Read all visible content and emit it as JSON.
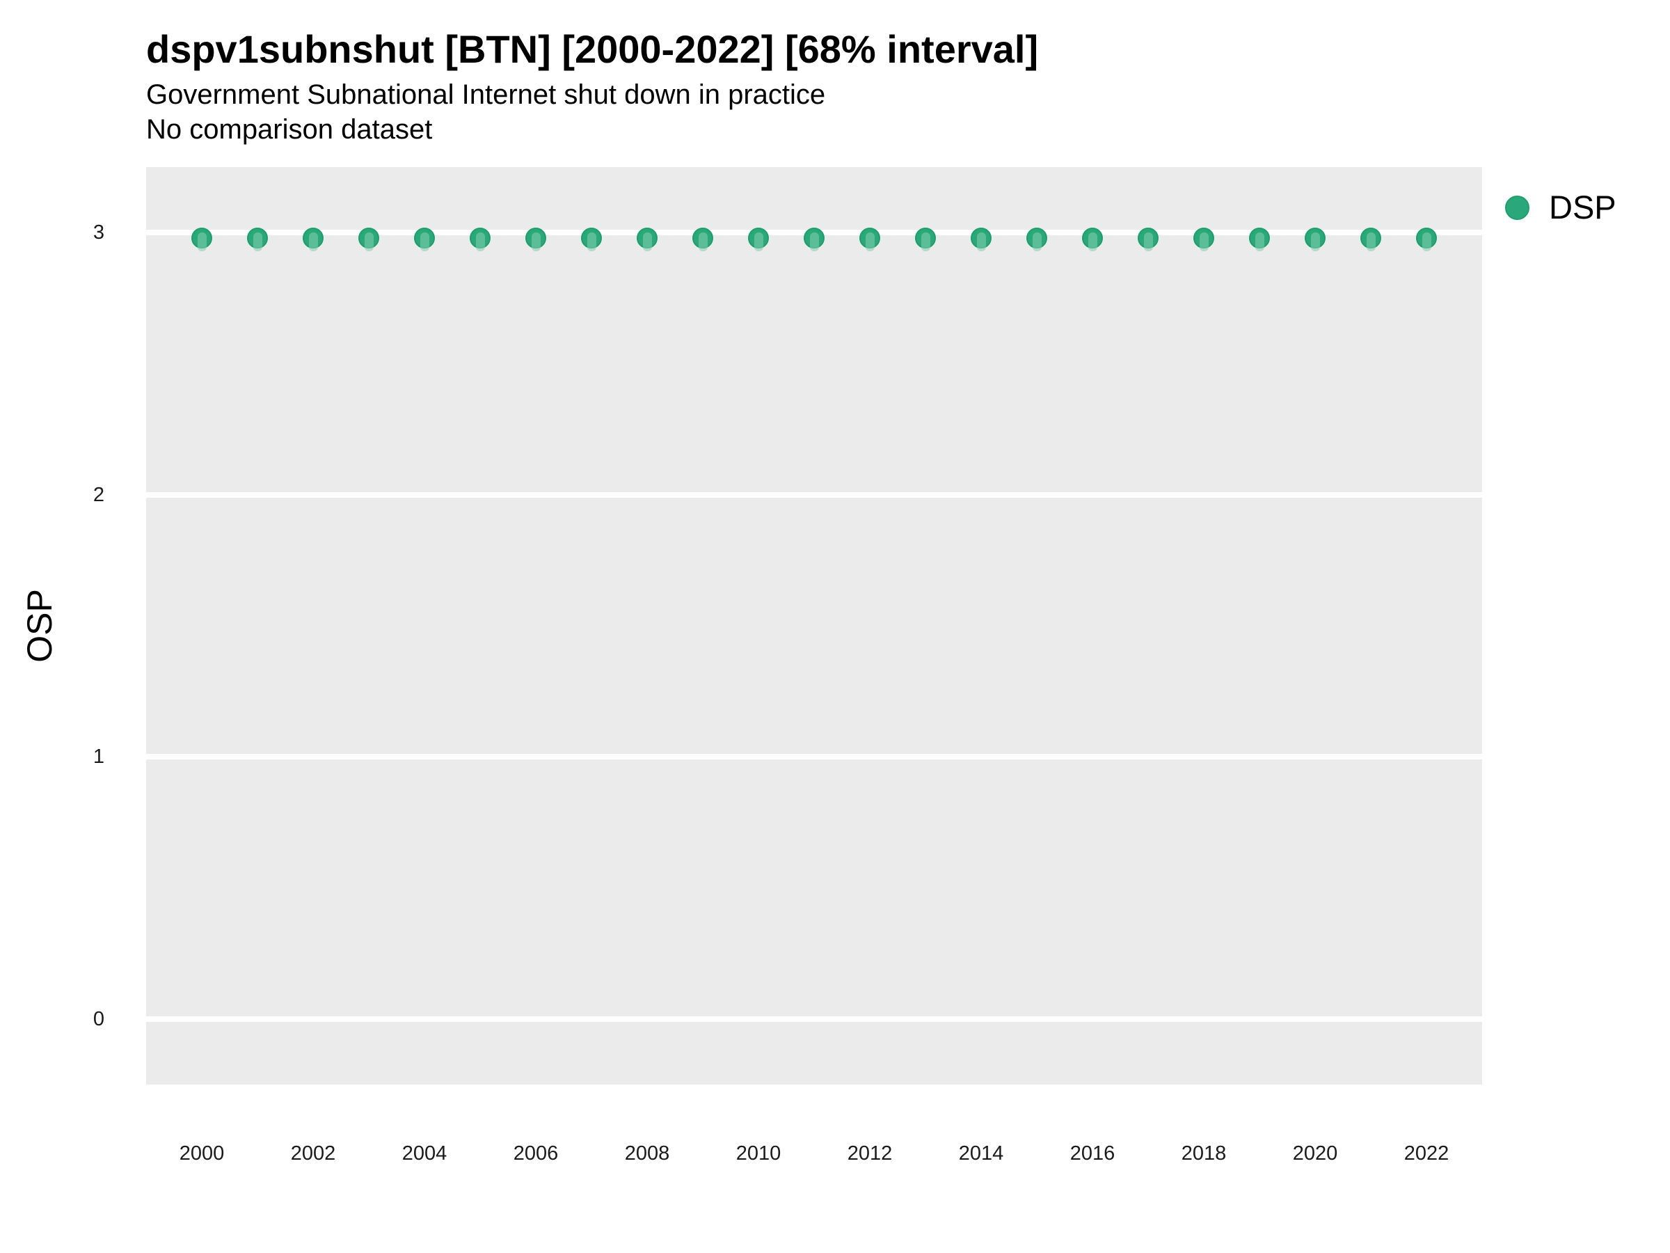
{
  "header": {
    "title": "dspv1subnshut [BTN] [2000-2022] [68% interval]",
    "subtitle_line1": "Government Subnational Internet shut down in practice",
    "subtitle_line2": "No comparison dataset"
  },
  "legend": {
    "position": "right",
    "items": [
      {
        "label": "DSP",
        "color": "#2AA87C",
        "border_color": "#1F9E6D"
      }
    ]
  },
  "chart_data": {
    "type": "scatter",
    "title": "dspv1subnshut [BTN] [2000-2022] [68% interval]",
    "subtitle": "Government Subnational Internet shut down in practice",
    "note": "No comparison dataset",
    "xlabel": "",
    "ylabel": "OSP",
    "xlim": [
      1999,
      2023
    ],
    "ylim": [
      -0.25,
      3.25
    ],
    "xticks": [
      2000,
      2002,
      2004,
      2006,
      2008,
      2010,
      2012,
      2014,
      2016,
      2018,
      2020,
      2022
    ],
    "yticks": [
      0,
      1,
      2,
      3
    ],
    "grid": "horizontal-major-only",
    "gridline_color": "#ffffff",
    "panel_bg": "#EBEBEB",
    "legend_position": "right",
    "series": [
      {
        "name": "DSP",
        "point_color": "#2AA87C",
        "point_border_color": "#1F9E6D",
        "interval_color": "rgba(135, 205, 175, 0.55)",
        "x": [
          2000,
          2001,
          2002,
          2003,
          2004,
          2005,
          2006,
          2007,
          2008,
          2009,
          2010,
          2011,
          2012,
          2013,
          2014,
          2015,
          2016,
          2017,
          2018,
          2019,
          2020,
          2021,
          2022
        ],
        "y": [
          2.98,
          2.98,
          2.98,
          2.98,
          2.98,
          2.98,
          2.98,
          2.98,
          2.98,
          2.98,
          2.98,
          2.98,
          2.98,
          2.98,
          2.98,
          2.98,
          2.98,
          2.98,
          2.98,
          2.98,
          2.98,
          2.98,
          2.98
        ],
        "interval_low": [
          2.93,
          2.93,
          2.93,
          2.93,
          2.93,
          2.93,
          2.93,
          2.93,
          2.93,
          2.93,
          2.93,
          2.93,
          2.93,
          2.93,
          2.93,
          2.93,
          2.93,
          2.93,
          2.93,
          2.93,
          2.93,
          2.93,
          2.93
        ],
        "interval_high": [
          3.0,
          3.0,
          3.0,
          3.0,
          3.0,
          3.0,
          3.0,
          3.0,
          3.0,
          3.0,
          3.0,
          3.0,
          3.0,
          3.0,
          3.0,
          3.0,
          3.0,
          3.0,
          3.0,
          3.0,
          3.0,
          3.0,
          3.0
        ]
      }
    ]
  }
}
